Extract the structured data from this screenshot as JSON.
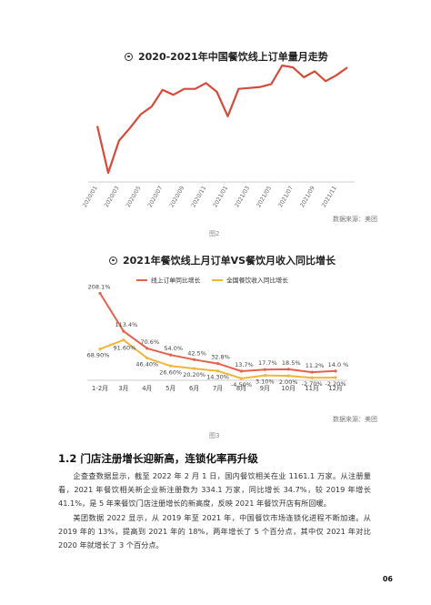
{
  "chart1": {
    "title": "2020-2021年中国餐饮线上订单量月走势",
    "source": "数据来源：美团",
    "caption": "图2",
    "chart_data": {
      "type": "line",
      "title": "2020-2021年中国餐饮线上订单量月走势",
      "x": [
        "2020/01",
        "2020/02",
        "2020/03",
        "2020/04",
        "2020/05",
        "2020/06",
        "2020/07",
        "2020/08",
        "2020/09",
        "2020/10",
        "2020/11",
        "2020/12",
        "2021/01",
        "2021/02",
        "2021/03",
        "2021/04",
        "2021/05",
        "2021/06",
        "2021/07",
        "2021/08",
        "2021/09",
        "2021/10",
        "2021/11",
        "2021/12"
      ],
      "tick_labels": [
        "2020/01",
        "2020/03",
        "2020/05",
        "2020/07",
        "2020/09",
        "2020/11",
        "2021/01",
        "2021/03",
        "2021/05",
        "2021/07",
        "2021/09",
        "2021/11"
      ],
      "values": [
        60,
        12,
        45,
        58,
        72,
        80,
        97,
        92,
        98,
        98,
        104,
        95,
        70,
        98,
        99,
        100,
        103,
        122,
        120,
        110,
        116,
        106,
        112,
        120
      ],
      "color": "#d64a3a",
      "grid": false,
      "legend": "none"
    }
  },
  "chart2": {
    "title": "2021年餐饮线上月订单VS餐饮月收入同比增长",
    "source": "数据来源：美团",
    "caption": "图3",
    "chart_data": {
      "type": "line",
      "title": "2021年餐饮线上月订单VS餐饮月收入同比增长",
      "categories": [
        "1-2月",
        "3月",
        "4月",
        "5月",
        "6月",
        "7月",
        "8月",
        "9月",
        "10月",
        "11月",
        "12月"
      ],
      "legend": "top-center",
      "series": [
        {
          "name": "线上订单同比增长",
          "color": "#e8604c",
          "values": [
            208.1,
            113.4,
            70.6,
            54.0,
            42.5,
            32.8,
            13.7,
            17.7,
            18.5,
            11.2,
            14.0
          ],
          "labels": [
            "208.1%",
            "113.4%",
            "70.6%",
            "54.0%",
            "42.5%",
            "32.8%",
            "13.7%",
            "17.7%",
            "18.5%",
            "11.2%",
            "14.0 %"
          ]
        },
        {
          "name": "全国餐饮收入同比增长",
          "color": "#f0b63a",
          "values": [
            68.9,
            91.6,
            46.4,
            26.6,
            20.2,
            14.3,
            -4.5,
            3.1,
            2.0,
            -2.7,
            -2.2
          ],
          "labels": [
            "68.90%",
            "91.60%",
            "46.40%",
            "26.60%",
            "20.20%",
            "14.30%",
            "-4.50%",
            "3.10%",
            "2.00%",
            "-2.70%",
            "-2.20%"
          ]
        }
      ]
    }
  },
  "section": {
    "heading": "1.2 门店注册增长迎新高，连锁化率再升级",
    "para1": "企查查数据显示，截至 2022 年 2 月 1 日，国内餐饮相关在业 1161.1 万家。从注册量看，2021 年餐饮相关新企业新注册数为 334.1 万家，同比增长 34.7%，较 2019 年增长 41.1%，是 5 年来餐饮门店注册增长的新高度，反映 2021 年餐饮开店有所回暖。",
    "para2": "美团数据 2022 显示，从 2019 年至 2021 年，中国餐饮市场连锁化进程不断加速。从 2019 年的 13%，提高到 2021 年的 18%，两年增长了 5 个百分点，其中仅 2021 年对比 2020 年就增长了 3 个百分点。"
  },
  "page_number": "06"
}
